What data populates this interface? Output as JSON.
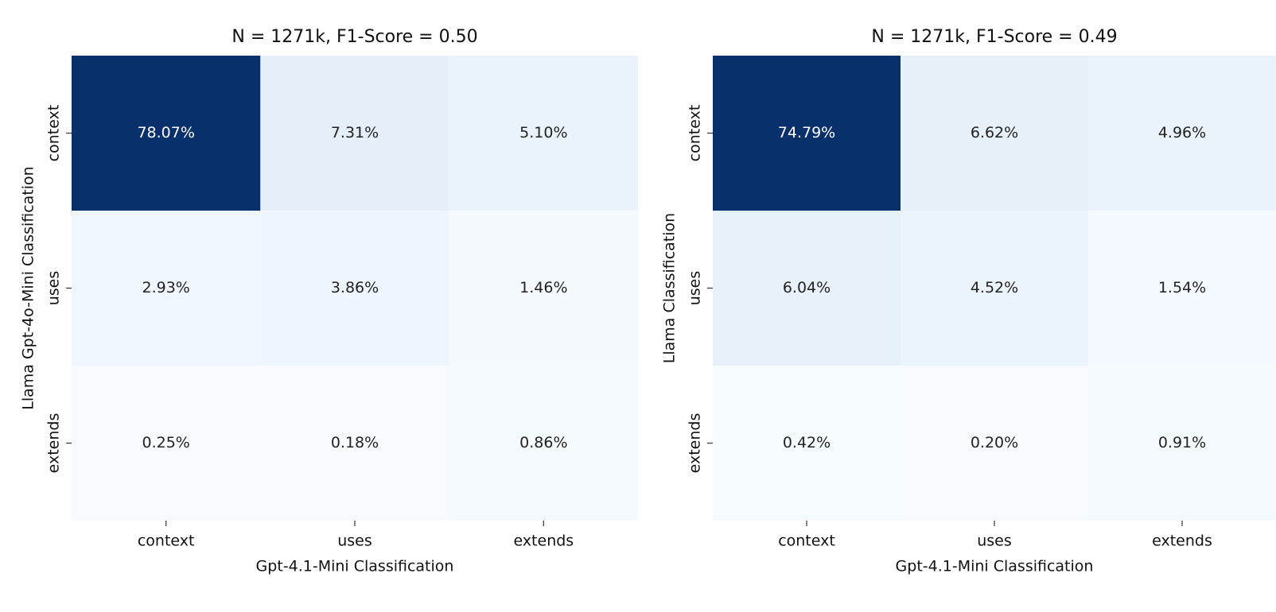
{
  "chart_data": [
    {
      "type": "heatmap",
      "title": "N = 1271k, F1-Score = 0.50",
      "x_label": "Gpt-4.1-Mini Classification",
      "y_label": "Llama Gpt-4o-Mini Classification",
      "x_categories": [
        "context",
        "uses",
        "extends"
      ],
      "y_categories": [
        "context",
        "uses",
        "extends"
      ],
      "values": [
        [
          78.07,
          7.31,
          5.1
        ],
        [
          2.93,
          3.86,
          1.46
        ],
        [
          0.25,
          0.18,
          0.86
        ]
      ],
      "value_labels": [
        [
          "78.07%",
          "7.31%",
          "5.10%"
        ],
        [
          "2.93%",
          "3.86%",
          "1.46%"
        ],
        [
          "0.25%",
          "0.18%",
          "0.86%"
        ]
      ],
      "colormap": [
        "#f7fbff",
        "#deebf7",
        "#c6dbef",
        "#9ecae1",
        "#6baed6",
        "#4292c6",
        "#2171b5",
        "#08519c",
        "#08306b"
      ]
    },
    {
      "type": "heatmap",
      "title": "N = 1271k, F1-Score = 0.49",
      "x_label": "Gpt-4.1-Mini Classification",
      "y_label": "Llama Classification",
      "x_categories": [
        "context",
        "uses",
        "extends"
      ],
      "y_categories": [
        "context",
        "uses",
        "extends"
      ],
      "values": [
        [
          74.79,
          6.62,
          4.96
        ],
        [
          6.04,
          4.52,
          1.54
        ],
        [
          0.42,
          0.2,
          0.91
        ]
      ],
      "value_labels": [
        [
          "74.79%",
          "6.62%",
          "4.96%"
        ],
        [
          "6.04%",
          "4.52%",
          "1.54%"
        ],
        [
          "0.42%",
          "0.20%",
          "0.91%"
        ]
      ],
      "colormap": [
        "#f7fbff",
        "#deebf7",
        "#c6dbef",
        "#9ecae1",
        "#6baed6",
        "#4292c6",
        "#2171b5",
        "#08519c",
        "#08306b"
      ]
    }
  ]
}
